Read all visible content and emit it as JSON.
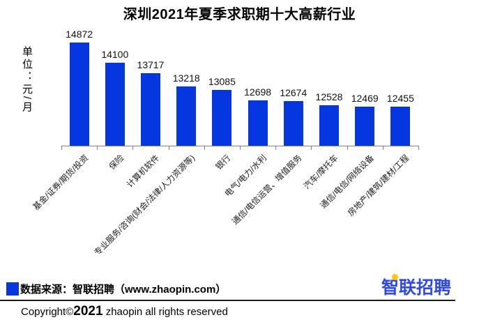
{
  "chart_data": {
    "type": "bar",
    "title": "深圳2021年夏季求职期十大高薪行业",
    "ylabel": "单位：元/月",
    "xlabel": "",
    "categories": [
      "基金/证券/期货/投资",
      "保险",
      "计算机软件",
      "专业服务/咨询(财会/法律/人力资源等)",
      "银行",
      "电气/电力/水利",
      "通信/电信运营、增值服务",
      "汽车/摩托车",
      "通信/电信/网络设备",
      "房地产/建筑/建材/工程"
    ],
    "values": [
      14872,
      14100,
      13717,
      13218,
      13085,
      12698,
      12674,
      12528,
      12469,
      12455
    ],
    "ylim": [
      11000,
      15000
    ],
    "grid": false,
    "legend_position": "none",
    "data_labels": true,
    "bar_color": "#0636e0"
  },
  "footer": {
    "source_label": "数据来源：智联招聘（www.zhaopin.com）",
    "copyright_prefix": "Copyright©",
    "copyright_year": "2021",
    "copyright_suffix": " zhaopin all rights reserved",
    "logo_text": "智联招聘"
  },
  "colors": {
    "bar": "#0636e0",
    "axis": "#808080",
    "logo_blue": "#2d49ee",
    "logo_dot": "#ffc60b",
    "text": "#000000"
  }
}
